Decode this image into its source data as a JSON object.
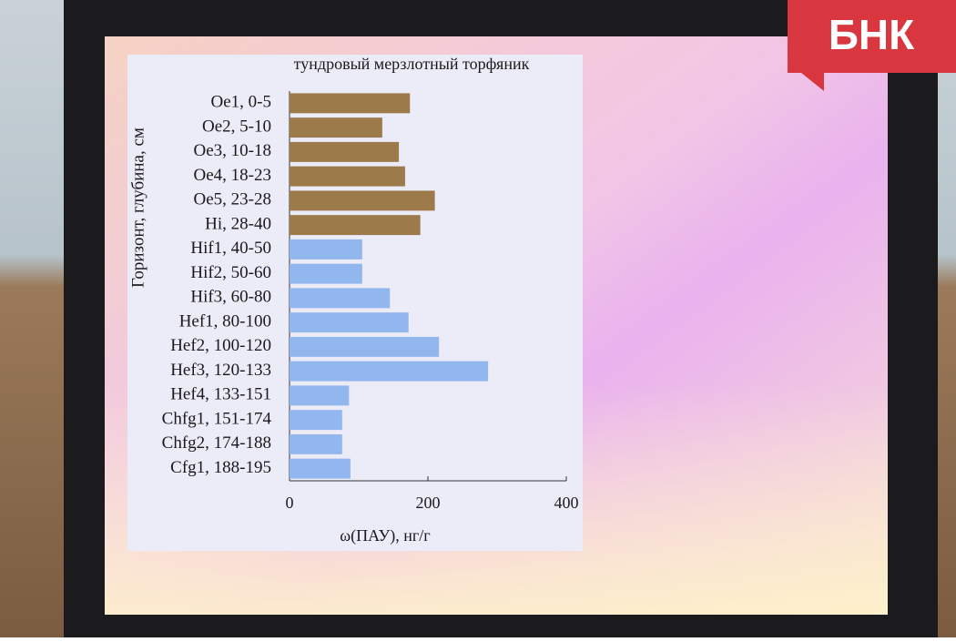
{
  "watermark": "БНК",
  "chart_data": {
    "type": "bar",
    "orientation": "horizontal",
    "title": "тундровый мерзлотный торфяник",
    "y_label": "Горизонт, глубина, см",
    "x_label": "ω(ПАУ), нг/г",
    "categories": [
      "Oe1, 0-5",
      "Oe2, 5-10",
      "Oe3, 10-18",
      "Oe4, 18-23",
      "Oe5, 23-28",
      "Hi, 28-40",
      "Hif1, 40-50",
      "Hif2, 50-60",
      "Hif3, 60-80",
      "Hef1, 80-100",
      "Hef2, 100-120",
      "Hef3, 120-133",
      "Hef4, 133-151",
      "Chfg1, 151-174",
      "Chfg2, 174-188",
      "Cfg1, 188-195"
    ],
    "values": [
      174,
      134,
      158,
      167,
      210,
      189,
      105,
      105,
      145,
      172,
      216,
      287,
      86,
      76,
      76,
      88
    ],
    "colors": [
      "#9c7a4a",
      "#9c7a4a",
      "#9c7a4a",
      "#9c7a4a",
      "#9c7a4a",
      "#9c7a4a",
      "#92b6ee",
      "#92b6ee",
      "#92b6ee",
      "#92b6ee",
      "#92b6ee",
      "#92b6ee",
      "#92b6ee",
      "#92b6ee",
      "#92b6ee",
      "#92b6ee"
    ],
    "xlim": [
      0,
      400
    ],
    "xticks": [
      0,
      200,
      400
    ],
    "grid": false
  }
}
